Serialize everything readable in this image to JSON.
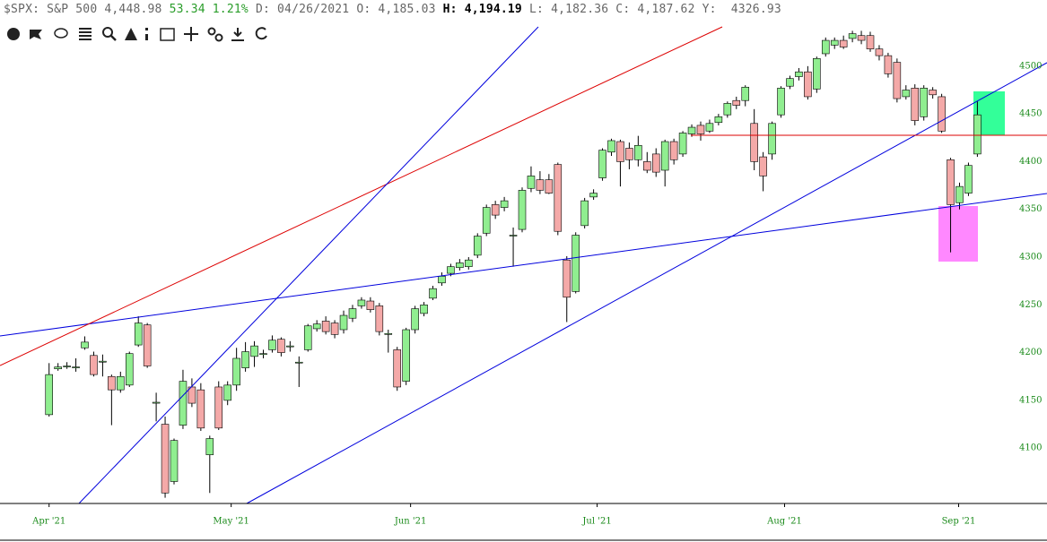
{
  "header": [
    "$SPX: S&P 500 4,448.98",
    "53.34 1.21%",
    "D: 04/26/2021 O: 4,185.03",
    "H: 4,194.19",
    "L: 4,182.36 C: 4,187.62 Y:  4326.93"
  ],
  "chart_data": {
    "type": "candlestick",
    "up_color": "#90ee90",
    "down_color": "#f4a9a8",
    "ylim": [
      4042,
      4543
    ],
    "yticks": [
      4100,
      4150,
      4200,
      4250,
      4300,
      4350,
      4400,
      4450,
      4500
    ],
    "xlim": [
      -5.5,
      111.8
    ],
    "xticks": [
      {
        "value": 0,
        "label": "Apr '21"
      },
      {
        "value": 20.4,
        "label": "May '21"
      },
      {
        "value": 40.5,
        "label": "Jun '21"
      },
      {
        "value": 61.4,
        "label": "Jul '21"
      },
      {
        "value": 82.4,
        "label": "Aug '21"
      },
      {
        "value": 101.9,
        "label": "Sep '21"
      }
    ],
    "ohlc": [
      [
        4135,
        4189,
        4133,
        4177
      ],
      [
        4183,
        4189,
        4181,
        4185
      ],
      [
        4185,
        4190,
        4183,
        4186
      ],
      [
        4184,
        4194,
        4180,
        4185
      ],
      [
        4205,
        4217,
        4203,
        4211
      ],
      [
        4197,
        4201,
        4175,
        4177
      ],
      [
        4190,
        4198,
        4175,
        4191
      ],
      [
        4175,
        4177,
        4124,
        4161
      ],
      [
        4161,
        4180,
        4158,
        4175
      ],
      [
        4166,
        4201,
        4164,
        4199
      ],
      [
        4208,
        4238,
        4206,
        4231
      ],
      [
        4229,
        4231,
        4184,
        4186
      ],
      [
        4147,
        4158,
        4128,
        4148
      ],
      [
        4125,
        4133,
        4048,
        4053
      ],
      [
        4065,
        4110,
        4062,
        4108
      ],
      [
        4124,
        4182,
        4120,
        4170
      ],
      [
        4164,
        4173,
        4143,
        4147
      ],
      [
        4161,
        4168,
        4118,
        4121
      ],
      [
        4093,
        4113,
        4053,
        4110
      ],
      [
        4164,
        4170,
        4119,
        4121
      ],
      [
        4150,
        4170,
        4145,
        4166
      ],
      [
        4166,
        4205,
        4160,
        4194
      ],
      [
        4184,
        4211,
        4180,
        4201
      ],
      [
        4196,
        4212,
        4185,
        4207
      ],
      [
        4198,
        4203,
        4194,
        4199
      ],
      [
        4203,
        4218,
        4200,
        4213
      ],
      [
        4214,
        4216,
        4196,
        4200
      ],
      [
        4206,
        4212,
        4201,
        4207
      ],
      [
        4190,
        4196,
        4164,
        4190
      ],
      [
        4203,
        4230,
        4201,
        4228
      ],
      [
        4225,
        4234,
        4222,
        4230
      ],
      [
        4233,
        4238,
        4219,
        4222
      ],
      [
        4231,
        4234,
        4215,
        4219
      ],
      [
        4224,
        4244,
        4220,
        4239
      ],
      [
        4236,
        4250,
        4232,
        4246
      ],
      [
        4249,
        4258,
        4246,
        4255
      ],
      [
        4254,
        4258,
        4242,
        4245
      ],
      [
        4249,
        4252,
        4218,
        4222
      ],
      [
        4219,
        4224,
        4200,
        4220
      ],
      [
        4203,
        4206,
        4160,
        4164
      ],
      [
        4170,
        4226,
        4166,
        4224
      ],
      [
        4224,
        4249,
        4220,
        4246
      ],
      [
        4241,
        4253,
        4238,
        4250
      ],
      [
        4257,
        4270,
        4255,
        4267
      ],
      [
        4273,
        4284,
        4270,
        4280
      ],
      [
        4283,
        4293,
        4280,
        4290
      ],
      [
        4289,
        4298,
        4286,
        4294
      ],
      [
        4290,
        4300,
        4287,
        4297
      ],
      [
        4302,
        4325,
        4299,
        4322
      ],
      [
        4325,
        4355,
        4322,
        4352
      ],
      [
        4355,
        4359,
        4340,
        4344
      ],
      [
        4352,
        4363,
        4348,
        4359
      ],
      [
        4323,
        4331,
        4290,
        4323
      ],
      [
        4329,
        4373,
        4326,
        4370
      ],
      [
        4372,
        4395,
        4368,
        4385
      ],
      [
        4381,
        4390,
        4366,
        4370
      ],
      [
        4381,
        4387,
        4366,
        4367
      ],
      [
        4397,
        4399,
        4323,
        4327
      ],
      [
        4297,
        4301,
        4232,
        4258
      ],
      [
        4264,
        4326,
        4262,
        4323
      ],
      [
        4333,
        4362,
        4330,
        4359
      ],
      [
        4363,
        4371,
        4360,
        4367
      ],
      [
        4383,
        4414,
        4380,
        4412
      ],
      [
        4410,
        4424,
        4406,
        4422
      ],
      [
        4421,
        4423,
        4374,
        4400
      ],
      [
        4414,
        4420,
        4392,
        4402
      ],
      [
        4402,
        4427,
        4395,
        4417
      ],
      [
        4400,
        4410,
        4388,
        4391
      ],
      [
        4408,
        4414,
        4384,
        4389
      ],
      [
        4391,
        4423,
        4374,
        4421
      ],
      [
        4421,
        4424,
        4397,
        4402
      ],
      [
        4408,
        4432,
        4405,
        4430
      ],
      [
        4429,
        4439,
        4426,
        4436
      ],
      [
        4438,
        4442,
        4422,
        4429
      ],
      [
        4432,
        4444,
        4430,
        4440
      ],
      [
        4441,
        4450,
        4438,
        4447
      ],
      [
        4449,
        4463,
        4446,
        4461
      ],
      [
        4464,
        4468,
        4455,
        4459
      ],
      [
        4464,
        4480,
        4458,
        4478
      ],
      [
        4440,
        4455,
        4391,
        4400
      ],
      [
        4405,
        4410,
        4369,
        4385
      ],
      [
        4408,
        4442,
        4402,
        4440
      ],
      [
        4449,
        4479,
        4446,
        4477
      ],
      [
        4479,
        4490,
        4476,
        4487
      ],
      [
        4489,
        4498,
        4485,
        4494
      ],
      [
        4494,
        4500,
        4465,
        4468
      ],
      [
        4476,
        4510,
        4472,
        4508
      ],
      [
        4513,
        4530,
        4510,
        4527
      ],
      [
        4522,
        4530,
        4518,
        4527
      ],
      [
        4527,
        4532,
        4518,
        4520
      ],
      [
        4529,
        4537,
        4525,
        4534
      ],
      [
        4532,
        4537,
        4523,
        4527
      ],
      [
        4532,
        4536,
        4515,
        4518
      ],
      [
        4518,
        4522,
        4506,
        4511
      ],
      [
        4511,
        4514,
        4488,
        4492
      ],
      [
        4504,
        4508,
        4462,
        4466
      ],
      [
        4468,
        4480,
        4465,
        4475
      ],
      [
        4477,
        4481,
        4438,
        4443
      ],
      [
        4447,
        4480,
        4443,
        4477
      ],
      [
        4475,
        4478,
        4466,
        4470
      ],
      [
        4468,
        4471,
        4430,
        4432
      ],
      [
        4402,
        4404,
        4305,
        4355
      ],
      [
        4357,
        4378,
        4350,
        4374
      ],
      [
        4367,
        4399,
        4364,
        4396
      ],
      [
        4408,
        4463,
        4405,
        4449
      ]
    ]
  }
}
